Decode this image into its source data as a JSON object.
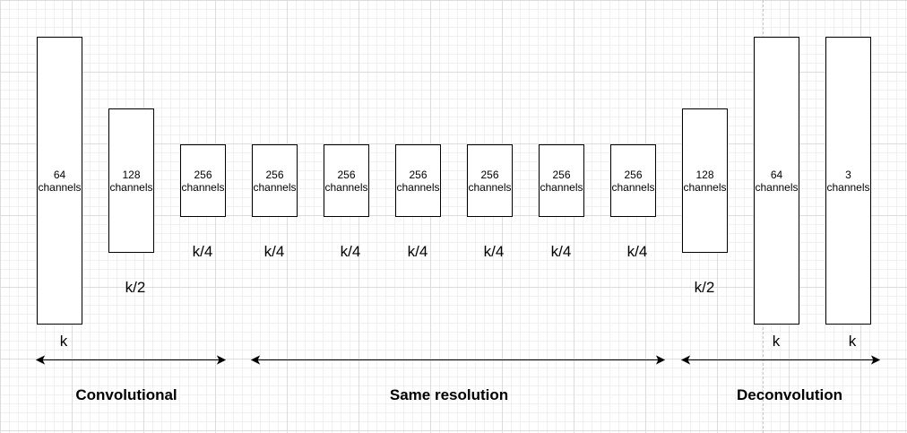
{
  "channels_word": "channels",
  "layers": [
    {
      "id": "conv-64",
      "channels": "64",
      "size": "k"
    },
    {
      "id": "conv-128",
      "channels": "128",
      "size": "k/2"
    },
    {
      "id": "conv-256",
      "channels": "256",
      "size": "k/4"
    },
    {
      "id": "same-1",
      "channels": "256",
      "size": "k/4"
    },
    {
      "id": "same-2",
      "channels": "256",
      "size": "k/4"
    },
    {
      "id": "same-3",
      "channels": "256",
      "size": "k/4"
    },
    {
      "id": "same-4",
      "channels": "256",
      "size": "k/4"
    },
    {
      "id": "same-5",
      "channels": "256",
      "size": "k/4"
    },
    {
      "id": "same-6",
      "channels": "256",
      "size": "k/4"
    },
    {
      "id": "deconv-128",
      "channels": "128",
      "size": "k/2"
    },
    {
      "id": "deconv-64",
      "channels": "64",
      "size": "k"
    },
    {
      "id": "deconv-3",
      "channels": "3",
      "size": "k"
    }
  ],
  "sections": [
    {
      "id": "convolutional",
      "title": "Convolutional"
    },
    {
      "id": "same-resolution",
      "title": "Same resolution"
    },
    {
      "id": "deconvolution",
      "title": "Deconvolution"
    }
  ]
}
